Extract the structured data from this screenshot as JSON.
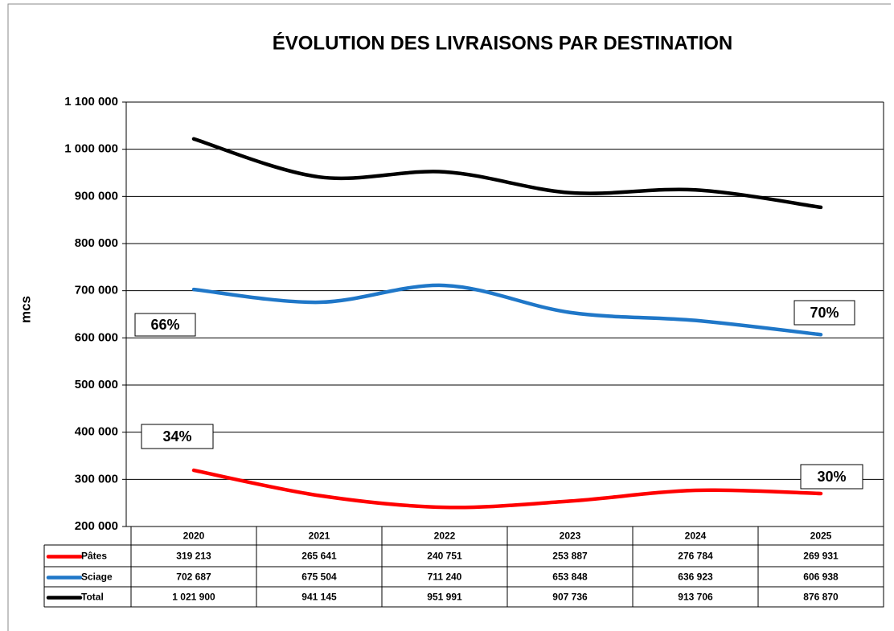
{
  "chart_data": {
    "type": "line",
    "title": "ÉVOLUTION DES LIVRAISONS PAR DESTINATION",
    "y_label": "mcs",
    "categories": [
      "2020",
      "2021",
      "2022",
      "2023",
      "2024",
      "2025"
    ],
    "series": [
      {
        "name": "Pâtes",
        "color": "#ff0000",
        "values": [
          319213,
          265641,
          240751,
          253887,
          276784,
          269931
        ],
        "value_labels": [
          "319 213",
          "265 641",
          "240 751",
          "253 887",
          "276 784",
          "269 931"
        ]
      },
      {
        "name": "Sciage",
        "color": "#1f77c8",
        "values": [
          702687,
          675504,
          711240,
          653848,
          636923,
          606938
        ],
        "value_labels": [
          "702 687",
          "675 504",
          "711 240",
          "653 848",
          "636 923",
          "606 938"
        ]
      },
      {
        "name": "Total",
        "color": "#000000",
        "values": [
          1021900,
          941145,
          951991,
          907736,
          913706,
          876870
        ],
        "value_labels": [
          "1 021 900",
          "941 145",
          "951 991",
          "907 736",
          "913 706",
          "876 870"
        ]
      }
    ],
    "annotations": [
      "66%",
      "34%",
      "70%",
      "30%"
    ],
    "ylim": [
      200000,
      1100000
    ],
    "yticks": [
      {
        "value": 200000,
        "label": "200 000"
      },
      {
        "value": 300000,
        "label": "300 000"
      },
      {
        "value": 400000,
        "label": "400 000"
      },
      {
        "value": 500000,
        "label": "500 000"
      },
      {
        "value": 600000,
        "label": "600 000"
      },
      {
        "value": 700000,
        "label": "700 000"
      },
      {
        "value": 800000,
        "label": "800 000"
      },
      {
        "value": 900000,
        "label": "900 000"
      },
      {
        "value": 1000000,
        "label": "1 000 000"
      },
      {
        "value": 1100000,
        "label": "1 100 000"
      }
    ],
    "grid": true
  }
}
